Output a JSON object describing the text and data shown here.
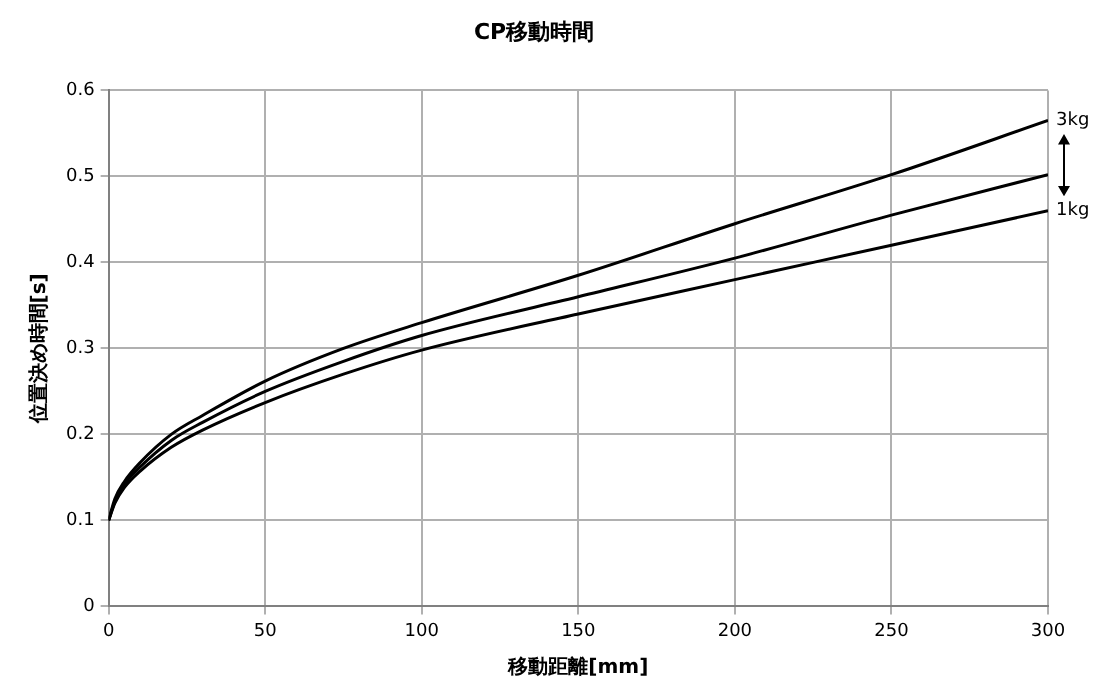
{
  "chart_data": {
    "type": "line",
    "title": "CP移動時間",
    "xlabel": "移動距離[mm]",
    "ylabel": "位置決め時間[s]",
    "x": [
      0,
      2,
      5,
      10,
      20,
      30,
      50,
      75,
      100,
      150,
      200,
      250,
      300
    ],
    "series": [
      {
        "name": "3kg",
        "color": "#000000",
        "values": [
          0.1,
          0.125,
          0.145,
          0.167,
          0.2,
          0.222,
          0.262,
          0.3,
          0.33,
          0.385,
          0.445,
          0.502,
          0.565
        ]
      },
      {
        "color": "#000000",
        "values": [
          0.1,
          0.122,
          0.142,
          0.162,
          0.193,
          0.214,
          0.25,
          0.285,
          0.315,
          0.36,
          0.405,
          0.455,
          0.502
        ]
      },
      {
        "name": "1kg",
        "color": "#000000",
        "values": [
          0.1,
          0.12,
          0.138,
          0.157,
          0.185,
          0.205,
          0.237,
          0.27,
          0.298,
          0.34,
          0.38,
          0.42,
          0.46
        ]
      }
    ],
    "xlim": [
      0,
      300
    ],
    "xticks": [
      0,
      50,
      100,
      150,
      200,
      250,
      300
    ],
    "ylim": [
      0,
      0.6
    ],
    "yticks": [
      0,
      0.1,
      0.2,
      0.3,
      0.4,
      0.5,
      0.6
    ],
    "grid": true,
    "legend": "right",
    "marker": "none",
    "line_style": "solid"
  }
}
